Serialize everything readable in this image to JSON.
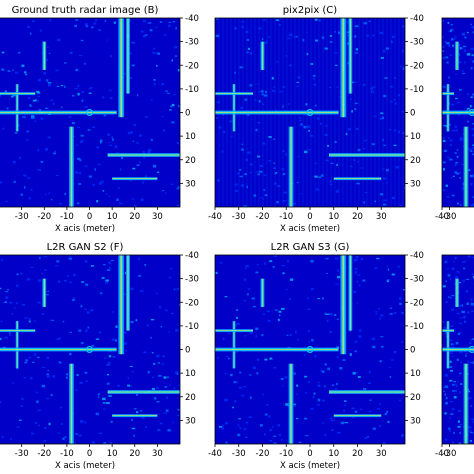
{
  "chart_data": [
    {
      "type": "heatmap",
      "title": "Ground truth radar image (B)",
      "xlabel": "X acis (meter)",
      "xticks": [
        -30,
        -20,
        -10,
        0,
        10,
        20,
        30
      ],
      "yticks": [
        -40,
        -30,
        -20,
        -10,
        0,
        10,
        20,
        30
      ],
      "xlim": [
        -44,
        40
      ],
      "ylim": [
        -40,
        40
      ],
      "colormap": "jet",
      "background": "#0000c8"
    },
    {
      "type": "heatmap",
      "title": "pix2pix (C)",
      "xlabel": "X acis (meter)",
      "xticks": [
        -40,
        -30,
        -20,
        -10,
        0,
        10,
        20,
        30
      ],
      "yticks": [
        -40,
        -30,
        -20,
        -10,
        0,
        10,
        20,
        30
      ],
      "xlim": [
        -40,
        40
      ],
      "ylim": [
        -40,
        40
      ],
      "colormap": "jet",
      "background": "#0000c8"
    },
    {
      "type": "heatmap",
      "title": "",
      "xlabel": "",
      "xticks": [
        -40,
        -30
      ],
      "yticks": [],
      "xlim": [
        -40,
        40
      ],
      "ylim": [
        -40,
        40
      ],
      "colormap": "jet",
      "background": "#0000c8"
    },
    {
      "type": "heatmap",
      "title": "L2R GAN S2 (F)",
      "xlabel": "X acis (meter)",
      "xticks": [
        -30,
        -20,
        -10,
        0,
        10,
        20,
        30
      ],
      "yticks": [
        -40,
        -30,
        -20,
        -10,
        0,
        10,
        20,
        30
      ],
      "xlim": [
        -44,
        40
      ],
      "ylim": [
        -40,
        40
      ],
      "colormap": "jet",
      "background": "#0000c8"
    },
    {
      "type": "heatmap",
      "title": "L2R GAN S3 (G)",
      "xlabel": "X acis (meter)",
      "xticks": [
        -40,
        -30,
        -20,
        -10,
        0,
        10,
        20,
        30
      ],
      "yticks": [
        -40,
        -30,
        -20,
        -10,
        0,
        10,
        20,
        30
      ],
      "xlim": [
        -40,
        40
      ],
      "ylim": [
        -40,
        40
      ],
      "colormap": "jet",
      "background": "#0000c8"
    },
    {
      "type": "heatmap",
      "title": "",
      "xlabel": "",
      "xticks": [
        -40,
        -30
      ],
      "yticks": [],
      "xlim": [
        -40,
        40
      ],
      "ylim": [
        -40,
        40
      ],
      "colormap": "jet",
      "background": "#0000c8"
    }
  ]
}
